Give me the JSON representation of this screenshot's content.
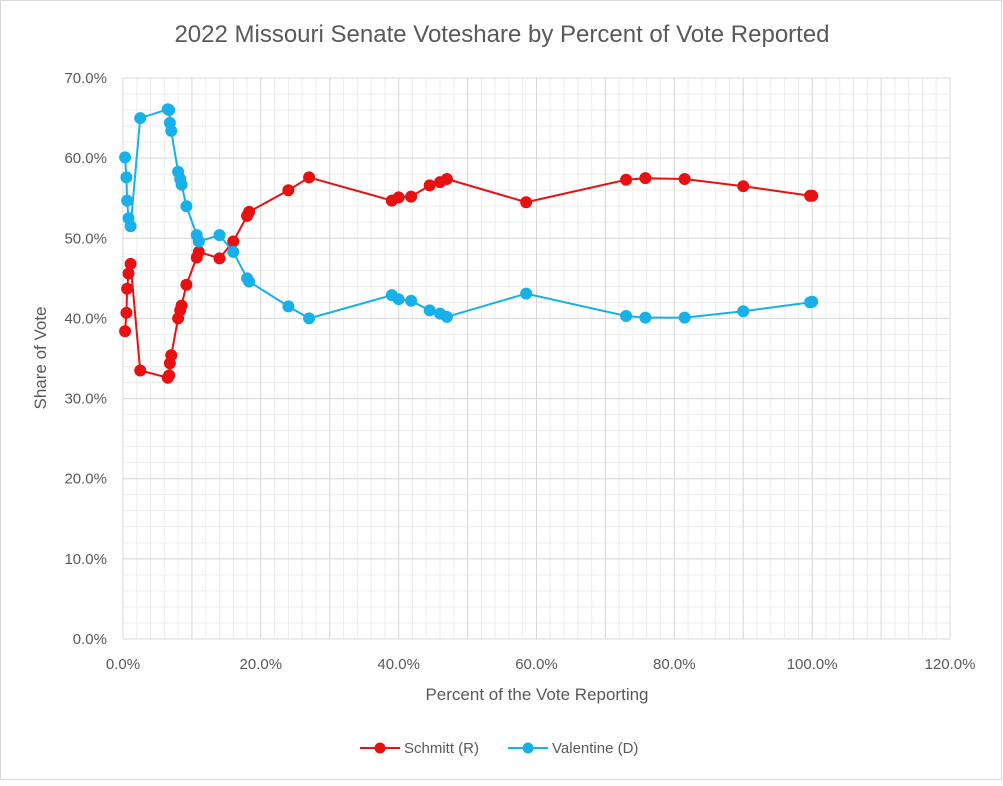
{
  "chart_data": {
    "type": "scatter",
    "title": "2022 Missouri Senate Voteshare by Percent of Vote Reported",
    "xlabel": "Percent of the Vote Reporting",
    "ylabel": "Share of Vote",
    "xlim": [
      0,
      120
    ],
    "ylim": [
      0,
      70
    ],
    "x_ticks": [
      0,
      10,
      20,
      30,
      40,
      50,
      60,
      70,
      80,
      90,
      100,
      110,
      120
    ],
    "x_tick_labels": [
      "0.0%",
      "20.0%",
      "40.0%",
      "60.0%",
      "80.0%",
      "100.0%",
      "120.0%"
    ],
    "x_tick_label_values": [
      0,
      20,
      40,
      60,
      80,
      100,
      120
    ],
    "y_ticks": [
      0,
      10,
      20,
      30,
      40,
      50,
      60,
      70
    ],
    "y_tick_labels": [
      "0.0%",
      "10.0%",
      "20.0%",
      "30.0%",
      "40.0%",
      "50.0%",
      "60.0%",
      "70.0%"
    ],
    "grid": true,
    "legend_position": "bottom",
    "series": [
      {
        "name": "Schmitt (R)",
        "color": "#e81010",
        "x": [
          0.3,
          0.5,
          0.6,
          0.8,
          1.1,
          2.5,
          6.5,
          6.7,
          6.8,
          7.0,
          8.0,
          8.3,
          8.5,
          9.2,
          10.7,
          11.0,
          14.0,
          16.0,
          18.0,
          18.3,
          24.0,
          27.0,
          39.0,
          40.0,
          41.8,
          44.5,
          46.0,
          47.0,
          58.5,
          73.0,
          75.8,
          81.5,
          90.0,
          99.7,
          100.0
        ],
        "y": [
          38.4,
          40.7,
          43.7,
          45.6,
          46.8,
          33.5,
          32.6,
          32.9,
          34.4,
          35.4,
          40.0,
          41.0,
          41.6,
          44.2,
          47.6,
          48.3,
          47.5,
          49.6,
          52.8,
          53.3,
          56.0,
          57.6,
          54.7,
          55.1,
          55.2,
          56.6,
          57.0,
          57.4,
          54.5,
          57.3,
          57.5,
          57.4,
          56.5,
          55.3,
          55.3
        ]
      },
      {
        "name": "Valentine (D)",
        "color": "#18b0e8",
        "x": [
          0.3,
          0.5,
          0.6,
          0.8,
          1.1,
          2.5,
          6.5,
          6.7,
          6.8,
          7.0,
          8.0,
          8.3,
          8.5,
          9.2,
          10.7,
          11.0,
          14.0,
          16.0,
          18.0,
          18.3,
          24.0,
          27.0,
          39.0,
          40.0,
          41.8,
          44.5,
          46.0,
          47.0,
          58.5,
          73.0,
          75.8,
          81.5,
          90.0,
          99.7,
          100.0
        ],
        "y": [
          60.1,
          57.6,
          54.7,
          52.5,
          51.5,
          65.0,
          66.1,
          66.0,
          64.4,
          63.4,
          58.3,
          57.4,
          56.7,
          54.0,
          50.4,
          49.6,
          50.4,
          48.3,
          45.0,
          44.6,
          41.5,
          40.0,
          42.9,
          42.4,
          42.2,
          41.0,
          40.6,
          40.2,
          43.1,
          40.3,
          40.1,
          40.1,
          40.9,
          42.0,
          42.1
        ]
      }
    ]
  }
}
